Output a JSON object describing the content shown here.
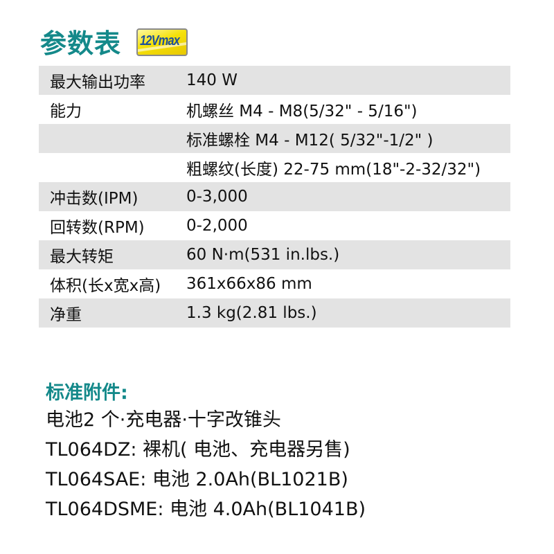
{
  "header": {
    "title": "参数表",
    "badge": "12Vmax",
    "badge_colors": {
      "fill": "#f5e10a",
      "text": "#1d4f9c"
    }
  },
  "accent_color": "#14898a",
  "specs": [
    {
      "label": "最大输出功率",
      "value": "140 W"
    },
    {
      "label": "能力",
      "value": "机螺丝 M4 - M8(5/32\" - 5/16\")"
    },
    {
      "label": "",
      "value": "标准螺栓 M4 - M12( 5/32\"-1/2\" )"
    },
    {
      "label": "",
      "value": "粗螺纹(长度) 22-75 mm(18\"-2-32/32\")"
    },
    {
      "label": "冲击数(IPM)",
      "value": "0-3,000"
    },
    {
      "label": "回转数(RPM)",
      "value": "0-2,000"
    },
    {
      "label": "最大转矩",
      "value": "60 N·m(531 in.lbs.)"
    },
    {
      "label": "体积(长x宽x高)",
      "value": "361x66x86 mm"
    },
    {
      "label": "净重",
      "value": "1.3 kg(2.81 lbs.)"
    }
  ],
  "accessories": {
    "title": "标准附件:",
    "lines": [
      "电池2 个·充电器·十字改锥头",
      "TL064DZ: 裸机( 电池、充电器另售)",
      "TL064SAE: 电池 2.0Ah(BL1021B)",
      "TL064DSME: 电池 4.0Ah(BL1041B)"
    ]
  }
}
